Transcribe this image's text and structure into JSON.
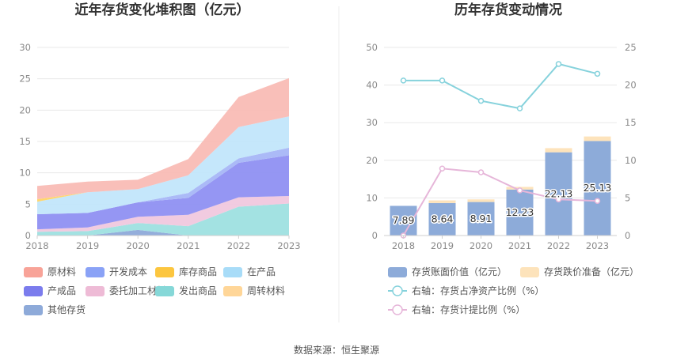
{
  "chart_data": [
    {
      "type": "area",
      "stacked": true,
      "title": "近年存货变化堆积图（亿元）",
      "categories": [
        "2018",
        "2019",
        "2020",
        "2021",
        "2022",
        "2023"
      ],
      "ylim": [
        0,
        30
      ],
      "yticks": [
        0,
        5,
        10,
        15,
        20,
        25,
        30
      ],
      "grid": true,
      "legend_position": "bottom",
      "series": [
        {
          "name": "其他存货",
          "color": "#8eaad9",
          "values": [
            0.0,
            0.0,
            0.9,
            0.0,
            0.0,
            0.0
          ]
        },
        {
          "name": "发出商品",
          "color": "#9ee0e0",
          "values": [
            0.6,
            0.7,
            1.1,
            1.5,
            4.6,
            5.1
          ]
        },
        {
          "name": "委托加工材料",
          "color": "#f0c8de",
          "values": [
            0.4,
            0.6,
            1.0,
            1.8,
            1.5,
            1.2
          ]
        },
        {
          "name": "产成品",
          "color": "#8f90f2",
          "values": [
            2.4,
            2.3,
            2.3,
            2.7,
            5.5,
            6.5
          ]
        },
        {
          "name": "开发成本",
          "color": "#a6b6f7",
          "values": [
            0.0,
            0.0,
            0.0,
            0.8,
            0.7,
            1.2
          ]
        },
        {
          "name": "在产品",
          "color": "#c2e6fb",
          "values": [
            2.0,
            3.3,
            2.1,
            2.8,
            5.0,
            5.0
          ]
        },
        {
          "name": "库存商品",
          "color": "#ffd566",
          "values": [
            0.4,
            0.0,
            0.0,
            0.0,
            0.0,
            0.0
          ]
        },
        {
          "name": "周转材料",
          "color": "#ffe2b3",
          "values": [
            0.0,
            0.0,
            0.0,
            0.0,
            0.0,
            0.0
          ]
        },
        {
          "name": "原材料",
          "color": "#f9bcb5",
          "values": [
            2.1,
            1.7,
            1.5,
            2.6,
            4.8,
            6.1
          ]
        }
      ],
      "legend": [
        {
          "name": "原材料",
          "color": "#f8a398"
        },
        {
          "name": "开发成本",
          "color": "#8aa2f6"
        },
        {
          "name": "库存商品",
          "color": "#fcc63f"
        },
        {
          "name": "在产品",
          "color": "#a8dcf8"
        },
        {
          "name": "产成品",
          "color": "#7b7ced"
        },
        {
          "name": "委托加工材料",
          "color": "#eebbd6"
        },
        {
          "name": "发出商品",
          "color": "#86d8d8"
        },
        {
          "name": "周转材料",
          "color": "#ffd698"
        },
        {
          "name": "其他存货",
          "color": "#8eaad9"
        }
      ]
    },
    {
      "type": "bar",
      "title": "历年存货变动情况",
      "categories": [
        "2018",
        "2019",
        "2020",
        "2021",
        "2022",
        "2023"
      ],
      "ylim_left": [
        0,
        50
      ],
      "yticks_left": [
        0,
        10,
        20,
        30,
        40,
        50
      ],
      "ylim_right": [
        0,
        25
      ],
      "yticks_right": [
        0,
        5,
        10,
        15,
        20,
        25
      ],
      "stacked": true,
      "bar_series": [
        {
          "name": "存货账面价值（亿元）",
          "color": "#8dabd9",
          "values": [
            7.89,
            8.64,
            8.91,
            12.23,
            22.13,
            25.13
          ],
          "labels": [
            "7.89",
            "8.64",
            "8.91",
            "12.23",
            "22.13",
            "25.13"
          ]
        },
        {
          "name": "存货跌价准备（亿元）",
          "color": "#fde3bb",
          "values": [
            0.0,
            0.7,
            0.7,
            0.7,
            1.1,
            1.2
          ]
        }
      ],
      "line_series": [
        {
          "name": "右轴：存货占净资产比例（%）",
          "color": "#86d2dc",
          "axis": "right",
          "values": [
            20.6,
            20.6,
            17.9,
            16.9,
            22.8,
            21.5
          ]
        },
        {
          "name": "右轴：存货计提比例（%）",
          "color": "#e6b6d9",
          "axis": "right",
          "values": [
            0.0,
            8.9,
            8.4,
            6.0,
            4.8,
            4.6
          ]
        }
      ]
    }
  ],
  "source": "数据来源：恒生聚源"
}
